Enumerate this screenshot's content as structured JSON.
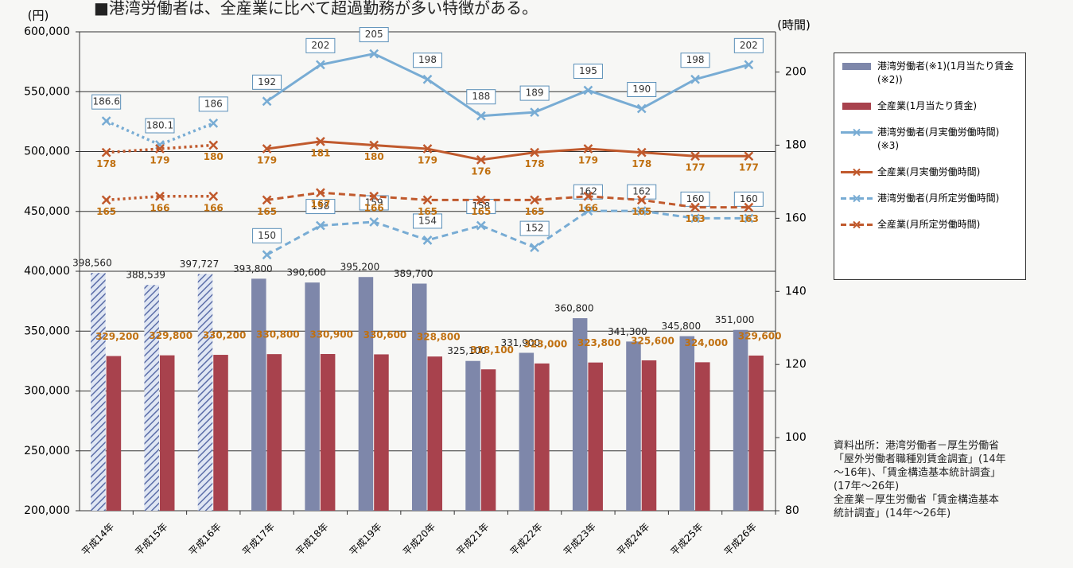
{
  "chart_data": {
    "type": "combo",
    "title": "■港湾労働者は、全産業に比べて超過勤務が多い特徴がある。",
    "y_label": "(円)",
    "y2_label": "(時間)",
    "categories": [
      "平成14年",
      "平成15年",
      "平成16年",
      "平成17年",
      "平成18年",
      "平成19年",
      "平成20年",
      "平成21年",
      "平成22年",
      "平成23年",
      "平成24年",
      "平成25年",
      "平成26年"
    ],
    "ylim": [
      200000,
      600000
    ],
    "yticks": [
      {
        "value": 200000,
        "label": "200,000"
      },
      {
        "value": 250000,
        "label": "250,000"
      },
      {
        "value": 300000,
        "label": "300,000"
      },
      {
        "value": 350000,
        "label": "350,000"
      },
      {
        "value": 400000,
        "label": "400,000"
      },
      {
        "value": 450000,
        "label": "450,000"
      },
      {
        "value": 500000,
        "label": "500,000"
      },
      {
        "value": 550000,
        "label": "550,000"
      },
      {
        "value": 600000,
        "label": "600,000"
      }
    ],
    "y2lim": [
      80,
      211
    ],
    "y2ticks": [
      80,
      100,
      120,
      140,
      160,
      180,
      200
    ],
    "grid": true,
    "series": [
      {
        "name": "港湾労働者(※1)(1月当たり賃金(※2))",
        "type": "bar",
        "color": "#7e87aa",
        "values": [
          398560,
          388539,
          397727,
          393800,
          390600,
          395200,
          389700,
          325100,
          331900,
          360800,
          341300,
          345800,
          351000
        ],
        "value_labels": [
          "398,560",
          "388,539",
          "397,727",
          "393,800",
          "390,600",
          "395,200",
          "389,700",
          "325,100",
          "331,900",
          "360,800",
          "341,300",
          "345,800",
          "351,000"
        ]
      },
      {
        "name": "全産業(1月当たり賃金)",
        "type": "bar",
        "color": "#a8424d",
        "values": [
          329200,
          329800,
          330200,
          330800,
          330900,
          330600,
          328800,
          318100,
          323000,
          323800,
          325600,
          324000,
          329600
        ],
        "value_labels": [
          "329,200",
          "329,800",
          "330,200",
          "330,800",
          "330,900",
          "330,600",
          "328,800",
          "318,100",
          "323,000",
          "323,800",
          "325,600",
          "324,000",
          "329,600"
        ]
      },
      {
        "name": "港湾労働者(月実働労働時間)(※3)",
        "type": "line",
        "axis": "y2",
        "style": "solid",
        "color": "#78acd4",
        "values": [
          186.6,
          180.1,
          186,
          192,
          202,
          205,
          198,
          188,
          189,
          195,
          190,
          198,
          202
        ]
      },
      {
        "name": "全産業(月実働労働時間)",
        "type": "line",
        "axis": "y2",
        "style": "solid",
        "color": "#c0592c",
        "values": [
          178,
          179,
          180,
          179,
          181,
          180,
          179,
          176,
          178,
          179,
          178,
          177,
          177
        ]
      },
      {
        "name": "港湾労働者(月所定労働時間)",
        "type": "line",
        "axis": "y2",
        "style": "dashed",
        "color": "#78acd4",
        "values": [
          null,
          null,
          null,
          150,
          158,
          159,
          154,
          158,
          152,
          162,
          162,
          160,
          160
        ]
      },
      {
        "name": "全産業(月所定労働時間)",
        "type": "line",
        "axis": "y2",
        "style": "dashed",
        "color": "#c0592c",
        "values": [
          165,
          166,
          166,
          165,
          167,
          166,
          165,
          165,
          165,
          166,
          165,
          163,
          163
        ]
      }
    ],
    "source_lines": [
      "資料出所：港湾労働者－厚生労働省",
      "「屋外労働者職種別賃金調査」(14年",
      "～16年)、「賃金構造基本統計調査」",
      "(17年～26年)",
      "全産業－厚生労働省「賃金構造基本",
      "統計調査」(14年～26年)"
    ]
  }
}
